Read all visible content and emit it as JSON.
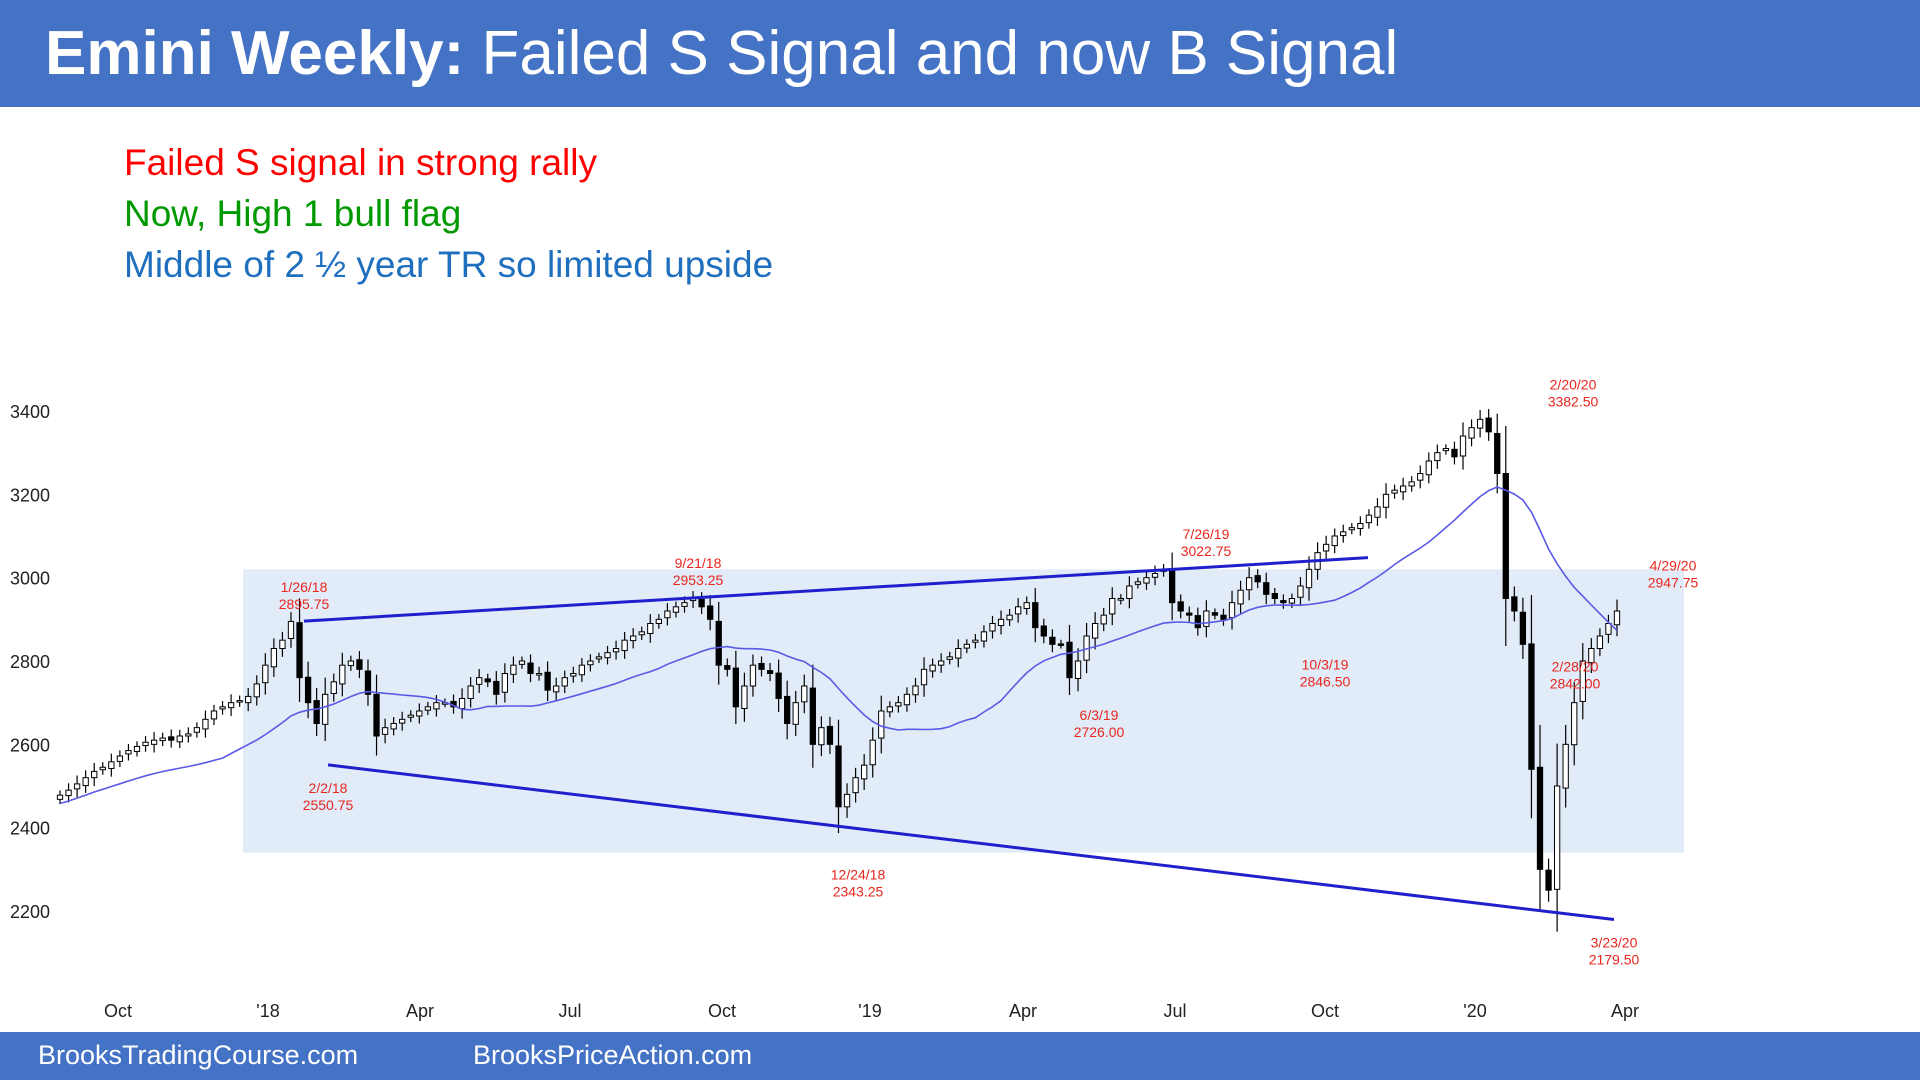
{
  "header": {
    "title_bold": "Emini Weekly:",
    "title_rest": " Failed S Signal and now B Signal",
    "bg_color": "#4472c4"
  },
  "notes": [
    {
      "text": "Failed S signal in strong rally",
      "color": "#ff0000"
    },
    {
      "text": "Now, High 1 bull flag",
      "color": "#009900"
    },
    {
      "text": "Middle of 2 ½ year TR so limited upside",
      "color": "#1f6fbf"
    }
  ],
  "footer": {
    "left": "BrooksTradingCourse.com",
    "right": "BrooksPriceAction.com"
  },
  "chart_data": {
    "type": "candlestick",
    "x_tick_labels": [
      "Oct",
      "'18",
      "Apr",
      "Jul",
      "Oct",
      "'19",
      "Apr",
      "Jul",
      "Oct",
      "'20",
      "Apr"
    ],
    "y_ticks": [
      3400,
      3200,
      3000,
      2800,
      2600,
      2400,
      2200
    ],
    "ylim": [
      2060,
      3530
    ],
    "grid": false,
    "colors": {
      "bull": "#ffffff",
      "bear": "#000000",
      "wick": "#000000",
      "ma": "#5a5ae6",
      "trendline": "#1f1fcc",
      "range_box": "#e2ecf9",
      "annotation": "#e8261d"
    },
    "trading_range": {
      "low": 2340,
      "high": 3020,
      "from": "12/2017",
      "to": "5/2020"
    },
    "trendlines": [
      {
        "name": "upper",
        "from": {
          "date": "1/26/18",
          "price": 2895.75
        },
        "to": {
          "date": "11/2019",
          "price": 3048
        }
      },
      {
        "name": "lower",
        "from": {
          "date": "2/2/18",
          "price": 2550.75
        },
        "to": {
          "date": "3/23/20",
          "price": 2179.5
        }
      }
    ],
    "annotations": [
      {
        "date": "1/26/18",
        "value": "2895.75",
        "pos": "above"
      },
      {
        "date": "2/2/18",
        "value": "2550.75",
        "pos": "below"
      },
      {
        "date": "9/21/18",
        "value": "2953.25",
        "pos": "above"
      },
      {
        "date": "12/24/18",
        "value": "2343.25",
        "pos": "below"
      },
      {
        "date": "6/3/19",
        "value": "2726.00",
        "pos": "below"
      },
      {
        "date": "7/26/19",
        "value": "3022.75",
        "pos": "above"
      },
      {
        "date": "10/3/19",
        "value": "2846.50",
        "pos": "below"
      },
      {
        "date": "2/20/20",
        "value": "3382.50",
        "pos": "above"
      },
      {
        "date": "2/28/20",
        "value": "2842.00",
        "pos": "below"
      },
      {
        "date": "3/23/20",
        "value": "2179.50",
        "pos": "below"
      },
      {
        "date": "4/29/20",
        "value": "2947.75",
        "pos": "above"
      }
    ],
    "weekly_close": [
      2478,
      2490,
      2505,
      2520,
      2535,
      2545,
      2558,
      2572,
      2585,
      2595,
      2605,
      2610,
      2615,
      2610,
      2620,
      2625,
      2640,
      2660,
      2680,
      2690,
      2700,
      2705,
      2715,
      2745,
      2790,
      2830,
      2850,
      2895,
      2760,
      2700,
      2650,
      2720,
      2750,
      2790,
      2800,
      2780,
      2720,
      2620,
      2640,
      2650,
      2660,
      2670,
      2680,
      2690,
      2700,
      2700,
      2690,
      2710,
      2740,
      2760,
      2750,
      2720,
      2770,
      2790,
      2800,
      2770,
      2770,
      2730,
      2740,
      2760,
      2770,
      2790,
      2800,
      2810,
      2820,
      2830,
      2850,
      2860,
      2870,
      2890,
      2900,
      2920,
      2930,
      2940,
      2950,
      2930,
      2900,
      2790,
      2780,
      2690,
      2740,
      2790,
      2780,
      2770,
      2710,
      2650,
      2700,
      2740,
      2600,
      2640,
      2600,
      2450,
      2480,
      2520,
      2550,
      2610,
      2680,
      2690,
      2700,
      2720,
      2740,
      2780,
      2790,
      2800,
      2810,
      2830,
      2840,
      2850,
      2870,
      2890,
      2900,
      2910,
      2930,
      2940,
      2880,
      2860,
      2840,
      2840,
      2760,
      2800,
      2860,
      2890,
      2910,
      2950,
      2950,
      2980,
      2990,
      3000,
      3010,
      3020,
      2940,
      2920,
      2910,
      2880,
      2920,
      2910,
      2900,
      2940,
      2970,
      3000,
      2990,
      2960,
      2950,
      2940,
      2950,
      2980,
      3020,
      3060,
      3080,
      3100,
      3110,
      3120,
      3130,
      3150,
      3170,
      3200,
      3210,
      3220,
      3230,
      3250,
      3280,
      3300,
      3310,
      3290,
      3340,
      3360,
      3380,
      3350,
      3250,
      2950,
      2920,
      2840,
      2540,
      2300,
      2250,
      2500,
      2600,
      2700,
      2800,
      2830,
      2860,
      2890,
      2920
    ]
  }
}
